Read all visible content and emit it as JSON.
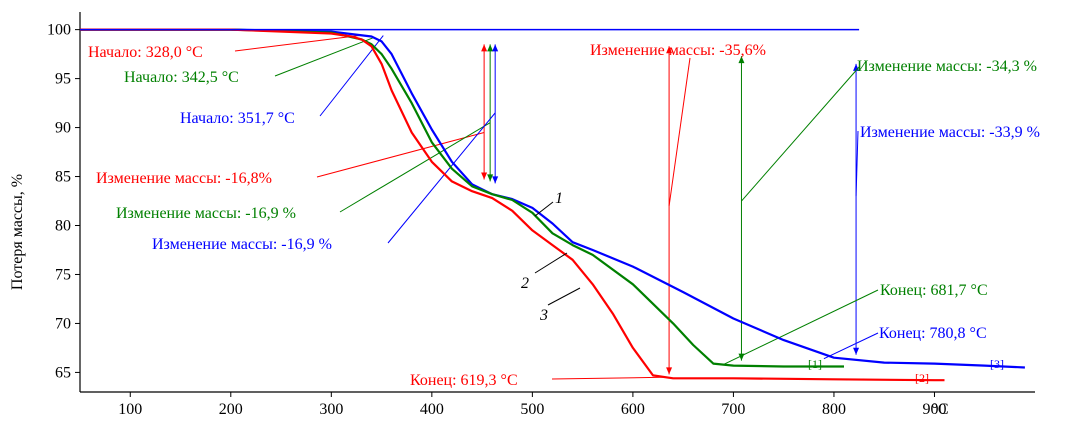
{
  "chart_data": {
    "type": "line",
    "title": "",
    "xlabel": "",
    "x_unit": "°C",
    "ylabel": "Потеря массы, %",
    "xlim": [
      50,
      1000
    ],
    "ylim": [
      63,
      101.8
    ],
    "xticks": [
      100,
      200,
      300,
      400,
      500,
      600,
      700,
      800,
      900
    ],
    "yticks": [
      65,
      70,
      75,
      80,
      85,
      90,
      95,
      100
    ],
    "grid": false,
    "colors": {
      "s1": "#0000ff",
      "s2": "#008000",
      "s3": "#ff0000"
    },
    "series": [
      {
        "key": "s1",
        "color": "#0000ff",
        "x": [
          50,
          100,
          200,
          300,
          340,
          350,
          360,
          380,
          400,
          420,
          440,
          460,
          480,
          500,
          520,
          540,
          560,
          600,
          650,
          700,
          750,
          800,
          850,
          900,
          950,
          990
        ],
        "y": [
          100,
          100,
          100,
          99.8,
          99.3,
          98.8,
          97.5,
          93.5,
          89.8,
          86.5,
          84.2,
          83.2,
          82.7,
          81.8,
          80.2,
          78.3,
          77.5,
          75.8,
          73.2,
          70.5,
          68.3,
          66.5,
          66.0,
          65.9,
          65.7,
          65.5
        ]
      },
      {
        "key": "s2",
        "color": "#008000",
        "x": [
          50,
          100,
          200,
          300,
          330,
          340,
          350,
          360,
          380,
          400,
          420,
          440,
          460,
          480,
          500,
          520,
          540,
          560,
          600,
          640,
          660,
          680,
          700,
          750,
          800,
          810
        ],
        "y": [
          100,
          100,
          100,
          99.7,
          99.0,
          98.5,
          97.5,
          96.0,
          92.5,
          88.5,
          85.8,
          84.0,
          83.2,
          82.6,
          81.3,
          79.2,
          78.0,
          77.0,
          74.0,
          70.0,
          67.8,
          65.9,
          65.7,
          65.6,
          65.6,
          65.6
        ]
      },
      {
        "key": "s3",
        "color": "#ff0000",
        "x": [
          50,
          100,
          200,
          300,
          320,
          330,
          340,
          350,
          360,
          380,
          400,
          420,
          440,
          460,
          480,
          500,
          520,
          540,
          560,
          580,
          600,
          620,
          640,
          700,
          800,
          900,
          910
        ],
        "y": [
          100,
          100,
          100,
          99.6,
          99.3,
          99.0,
          98.3,
          96.5,
          93.8,
          89.5,
          86.5,
          84.5,
          83.5,
          82.8,
          81.5,
          79.5,
          78.0,
          76.5,
          74.0,
          71.0,
          67.5,
          64.7,
          64.4,
          64.4,
          64.3,
          64.2,
          64.2
        ]
      },
      {
        "key": "baseline",
        "color": "#0000ff",
        "x": [
          50,
          825
        ],
        "y": [
          100,
          100
        ]
      }
    ],
    "annotations": [
      {
        "key": "start3",
        "color": "#ff0000",
        "text": "Начало: 328,0 °C",
        "anchor": [
          328,
          99.4
        ]
      },
      {
        "key": "start2",
        "color": "#008000",
        "text": "Начало: 342,5 °C",
        "anchor": [
          342.5,
          99.2
        ]
      },
      {
        "key": "start1",
        "color": "#0000ff",
        "text": "Начало: 351,7 °C",
        "anchor": [
          351.7,
          99.4
        ]
      },
      {
        "key": "step1_3",
        "color": "#ff0000",
        "text": "Изменение массы: -16,8%",
        "anchor": [
          452,
          89.5
        ]
      },
      {
        "key": "step1_2",
        "color": "#008000",
        "text": "Изменение массы: -16,9 %",
        "anchor": [
          458,
          90.5
        ]
      },
      {
        "key": "step1_1",
        "color": "#0000ff",
        "text": "Изменение массы: -16,9 %",
        "anchor": [
          463,
          91.5
        ]
      },
      {
        "key": "step2_3",
        "color": "#ff0000",
        "text": "Изменение массы: -35,6%",
        "anchor": [
          636,
          82
        ]
      },
      {
        "key": "step2_2",
        "color": "#008000",
        "text": "Изменение массы: -34,3 %",
        "anchor": [
          708,
          82.5
        ]
      },
      {
        "key": "step2_1",
        "color": "#0000ff",
        "text": "Изменение массы: -33,9 %",
        "anchor": [
          822,
          83
        ]
      },
      {
        "key": "end2",
        "color": "#008000",
        "text": "Конец: 681,7 °C",
        "anchor": [
          690,
          65.8
        ]
      },
      {
        "key": "end1",
        "color": "#0000ff",
        "text": "Конец: 780,8 °C",
        "anchor": [
          790,
          66.4
        ]
      },
      {
        "key": "end3",
        "color": "#ff0000",
        "text": "Конец: 619,3 °C",
        "anchor": [
          630,
          64.5
        ]
      }
    ],
    "curve_labels": [
      "1",
      "2",
      "3"
    ],
    "end_markers": [
      "[1]",
      "[2]",
      "[3]"
    ]
  }
}
